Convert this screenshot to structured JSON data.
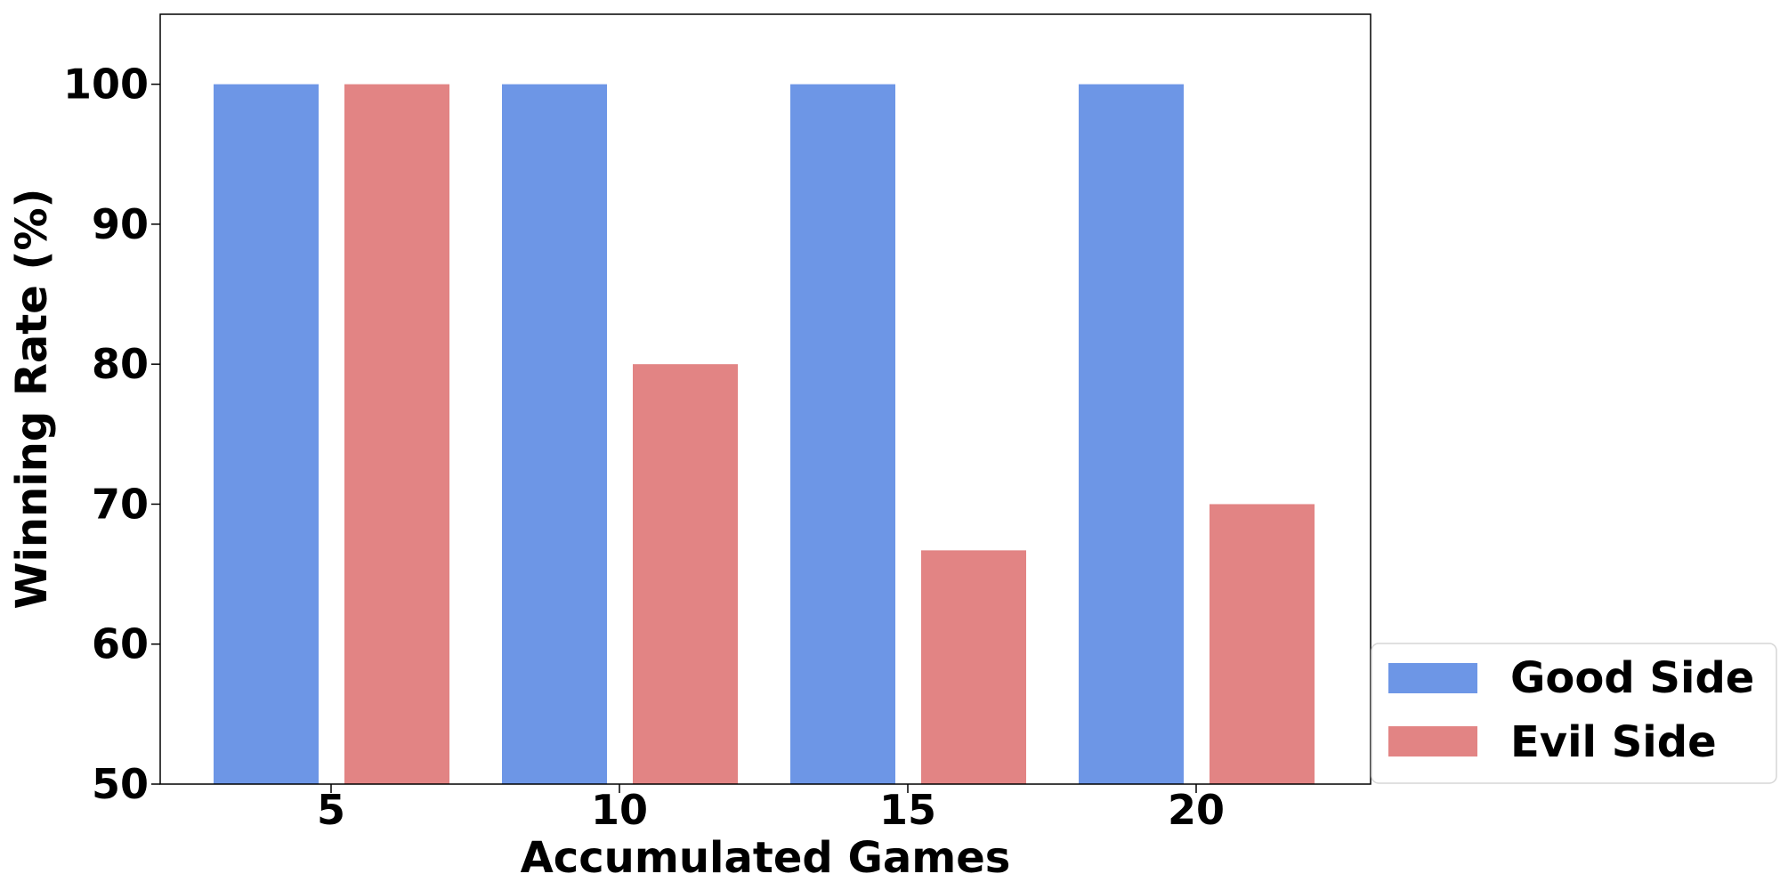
{
  "chart_data": {
    "type": "bar",
    "categories": [
      "5",
      "10",
      "15",
      "20"
    ],
    "series": [
      {
        "name": "Good Side",
        "values": [
          100,
          100,
          100,
          100
        ],
        "color": "#6D96E6"
      },
      {
        "name": "Evil Side",
        "values": [
          100,
          80,
          66.7,
          70
        ],
        "color": "#E28484"
      }
    ],
    "xlabel": "Accumulated Games",
    "ylabel": "Winning Rate (%)",
    "ylim": [
      50,
      105
    ],
    "yticks": [
      "50",
      "60",
      "70",
      "80",
      "90",
      "100"
    ],
    "grid": false,
    "legend_position": "lower-right, outside plot"
  }
}
